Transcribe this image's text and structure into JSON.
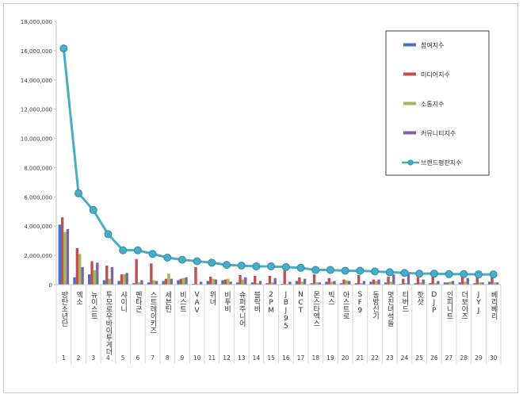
{
  "chart_data": {
    "type": "bar",
    "ylim": [
      0,
      18000000
    ],
    "yticks": [
      "0",
      "2,000,000",
      "4,000,000",
      "6,000,000",
      "8,000,000",
      "10,000,000",
      "12,000,000",
      "14,000,000",
      "16,000,000",
      "18,000,000"
    ],
    "ytick_values": [
      0,
      2000000,
      4000000,
      6000000,
      8000000,
      10000000,
      12000000,
      14000000,
      16000000,
      18000000
    ],
    "categories": [
      "방탄소년단",
      "엑소",
      "뉴이스트",
      "투모로우바이투게더",
      "샤이니",
      "펜타곤",
      "스트레이키즈",
      "세븐틴",
      "비스트",
      "VAV",
      "위너",
      "비투비",
      "슈퍼주니어",
      "블락비",
      "2PM",
      "JBJ95",
      "NCT",
      "몬스타엑스",
      "빅스",
      "아스트로",
      "SF9",
      "동방신기",
      "멋진녀석들",
      "티버드",
      "핫샷",
      "DJP",
      "인피니트",
      "더보이즈",
      "JYJ",
      "베리베리"
    ],
    "index_labels": [
      "1",
      "2",
      "3",
      "4",
      "5",
      "6",
      "7",
      "8",
      "9",
      "10",
      "11",
      "12",
      "13",
      "14",
      "15",
      "16",
      "17",
      "18",
      "19",
      "20",
      "21",
      "22",
      "23",
      "24",
      "25",
      "26",
      "27",
      "28",
      "29",
      "30"
    ],
    "series": [
      {
        "name": "참여지수",
        "color": "#4472c4",
        "values": [
          4100000,
          500000,
          700000,
          300000,
          250000,
          100000,
          150000,
          250000,
          300000,
          50000,
          250000,
          300000,
          150000,
          150000,
          100000,
          50000,
          250000,
          100000,
          200000,
          100000,
          100000,
          200000,
          150000,
          50000,
          100000,
          100000,
          150000,
          150000,
          100000,
          200000
        ]
      },
      {
        "name": "미디어지수",
        "color": "#c0504d",
        "values": [
          4600000,
          2500000,
          1600000,
          1300000,
          700000,
          1750000,
          1450000,
          400000,
          400000,
          1200000,
          550000,
          350000,
          650000,
          600000,
          600000,
          950000,
          500000,
          700000,
          450000,
          350000,
          650000,
          350000,
          550000,
          400000,
          500000,
          600000,
          150000,
          550000,
          600000,
          500000
        ]
      },
      {
        "name": "소통지수",
        "color": "#9bbb59",
        "values": [
          3600000,
          2100000,
          1000000,
          400000,
          700000,
          150000,
          300000,
          750000,
          450000,
          50000,
          400000,
          400000,
          350000,
          100000,
          150000,
          50000,
          200000,
          150000,
          200000,
          300000,
          100000,
          250000,
          200000,
          100000,
          150000,
          100000,
          200000,
          200000,
          150000,
          150000
        ]
      },
      {
        "name": "커뮤니티지수",
        "color": "#8064a2",
        "values": [
          3800000,
          1200000,
          1500000,
          1200000,
          800000,
          300000,
          250000,
          400000,
          500000,
          200000,
          350000,
          200000,
          500000,
          250000,
          450000,
          200000,
          400000,
          150000,
          250000,
          250000,
          250000,
          350000,
          700000,
          750000,
          350000,
          250000,
          250000,
          450000,
          150000,
          150000
        ]
      }
    ],
    "line": {
      "name": "브랜드평판지수",
      "color": "#4bacc6",
      "values": [
        16150000,
        6250000,
        5100000,
        3450000,
        2350000,
        2350000,
        2100000,
        1850000,
        1700000,
        1600000,
        1500000,
        1350000,
        1300000,
        1250000,
        1250000,
        1200000,
        1150000,
        1000000,
        1000000,
        950000,
        950000,
        900000,
        850000,
        800000,
        750000,
        750000,
        720000,
        720000,
        700000,
        700000
      ]
    },
    "legend_position": "top-right",
    "grid": true
  }
}
